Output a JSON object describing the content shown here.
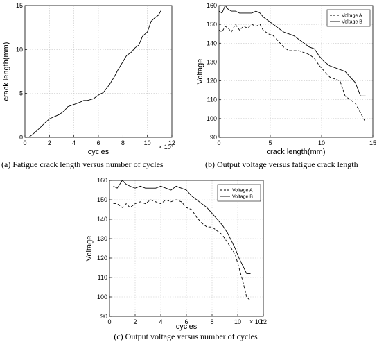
{
  "chart_data": [
    {
      "type": "line",
      "caption": "(a) Fatigue crack length versus number of cycles",
      "xlabel": "cycles",
      "ylabel": "crack length(mm)",
      "x_multiplier": "× 10",
      "x_multiplier_exp": "4",
      "xlim": [
        0,
        12
      ],
      "ylim": [
        0,
        15
      ],
      "xticks": [
        "0",
        "2",
        "4",
        "6",
        "8",
        "10",
        "12"
      ],
      "yticks": [
        "0",
        "5",
        "10",
        "15"
      ],
      "grid": true,
      "series": [
        {
          "style": "solid",
          "x": [
            0.3,
            0.6,
            1.0,
            1.3,
            1.6,
            2.0,
            2.3,
            2.8,
            3.2,
            3.5,
            3.7,
            4.1,
            4.5,
            4.8,
            5.1,
            5.6,
            6.1,
            6.4,
            6.9,
            7.3,
            7.6,
            8.0,
            8.3,
            8.7,
            9.0,
            9.3,
            9.6,
            10.0,
            10.3,
            10.6,
            10.9,
            11.1
          ],
          "y": [
            0.0,
            0.3,
            0.8,
            1.2,
            1.6,
            2.1,
            2.3,
            2.6,
            3.0,
            3.5,
            3.6,
            3.8,
            4.0,
            4.2,
            4.2,
            4.4,
            4.9,
            5.1,
            6.0,
            6.9,
            7.7,
            8.6,
            9.3,
            9.7,
            10.2,
            10.5,
            11.5,
            12.0,
            13.2,
            13.6,
            13.9,
            14.4
          ]
        }
      ]
    },
    {
      "type": "line",
      "caption": "(b) Output voltage versus fatigue crack length",
      "xlabel": "crack length(mm)",
      "ylabel": "Voltage",
      "xlim": [
        0,
        15
      ],
      "ylim": [
        90,
        160
      ],
      "xticks": [
        "0",
        "5",
        "10",
        "15"
      ],
      "yticks": [
        "90",
        "100",
        "110",
        "120",
        "130",
        "140",
        "150",
        "160"
      ],
      "grid": true,
      "legend_position": "top-right",
      "series": [
        {
          "name": "Voltage A",
          "style": "dashed",
          "x": [
            0.0,
            0.3,
            0.6,
            0.9,
            1.2,
            1.6,
            2.0,
            2.4,
            2.8,
            3.2,
            3.6,
            4.0,
            4.3,
            4.8,
            5.3,
            5.8,
            6.3,
            6.8,
            7.3,
            7.8,
            8.3,
            8.8,
            9.3,
            9.8,
            10.3,
            10.8,
            11.3,
            11.8,
            12.3,
            12.8,
            13.3,
            13.8,
            14.3
          ],
          "y": [
            147,
            146,
            149,
            148,
            146,
            150,
            147,
            149,
            148,
            150,
            149,
            150,
            147,
            145,
            144,
            141,
            138,
            136,
            136,
            136,
            135,
            134,
            132,
            128,
            125,
            122,
            121,
            120,
            112,
            110,
            108,
            103,
            98
          ]
        },
        {
          "name": "Voltage B",
          "style": "solid",
          "x": [
            0.0,
            0.3,
            0.6,
            0.9,
            1.2,
            1.6,
            2.0,
            2.4,
            2.8,
            3.2,
            3.6,
            4.0,
            4.3,
            4.8,
            5.3,
            5.8,
            6.3,
            6.8,
            7.3,
            7.8,
            8.3,
            8.8,
            9.3,
            9.8,
            10.3,
            10.8,
            11.3,
            11.8,
            12.3,
            12.8,
            13.3,
            13.8,
            14.3
          ],
          "y": [
            157,
            156,
            160,
            158,
            157,
            157,
            156,
            156,
            156,
            156,
            157,
            156,
            154,
            152,
            150,
            148,
            146,
            145,
            144,
            142,
            140,
            138,
            137,
            133,
            130,
            128,
            127,
            126,
            125,
            122,
            119,
            112,
            112
          ]
        }
      ]
    },
    {
      "type": "line",
      "caption": "(c) Output voltage versus number of cycles",
      "xlabel": "cycles",
      "ylabel": "Voltage",
      "x_multiplier": "× 10",
      "x_multiplier_exp": "4",
      "xlim": [
        0,
        12
      ],
      "ylim": [
        90,
        160
      ],
      "xticks": [
        "0",
        "2",
        "4",
        "6",
        "8",
        "10",
        "12"
      ],
      "yticks": [
        "90",
        "100",
        "110",
        "120",
        "130",
        "140",
        "150",
        "160"
      ],
      "grid": true,
      "legend_position": "top-right",
      "series": [
        {
          "name": "Voltage A",
          "style": "dashed",
          "x": [
            0.3,
            0.6,
            1.0,
            1.3,
            1.6,
            2.0,
            2.4,
            2.8,
            3.2,
            3.6,
            4.0,
            4.4,
            4.8,
            5.2,
            5.6,
            6.0,
            6.4,
            6.8,
            7.2,
            7.6,
            8.0,
            8.4,
            8.8,
            9.2,
            9.5,
            9.8,
            10.1,
            10.4,
            10.7,
            11.0
          ],
          "y": [
            148,
            148,
            146,
            148,
            146,
            148,
            149,
            148,
            150,
            149,
            148,
            150,
            149,
            150,
            149,
            146,
            145,
            141,
            138,
            136,
            136,
            134,
            132,
            128,
            125,
            122,
            115,
            108,
            100,
            98
          ]
        },
        {
          "name": "Voltage B",
          "style": "solid",
          "x": [
            0.3,
            0.6,
            1.0,
            1.3,
            1.6,
            2.0,
            2.4,
            2.8,
            3.2,
            3.6,
            4.0,
            4.4,
            4.8,
            5.2,
            5.6,
            6.0,
            6.4,
            6.8,
            7.2,
            7.6,
            8.0,
            8.4,
            8.8,
            9.2,
            9.5,
            9.8,
            10.1,
            10.4,
            10.7,
            11.0
          ],
          "y": [
            157,
            156,
            160,
            158,
            157,
            156,
            157,
            156,
            156,
            156,
            157,
            156,
            155,
            157,
            156,
            155,
            152,
            150,
            148,
            146,
            143,
            140,
            137,
            133,
            129,
            125,
            120,
            116,
            112,
            112
          ]
        }
      ]
    }
  ]
}
